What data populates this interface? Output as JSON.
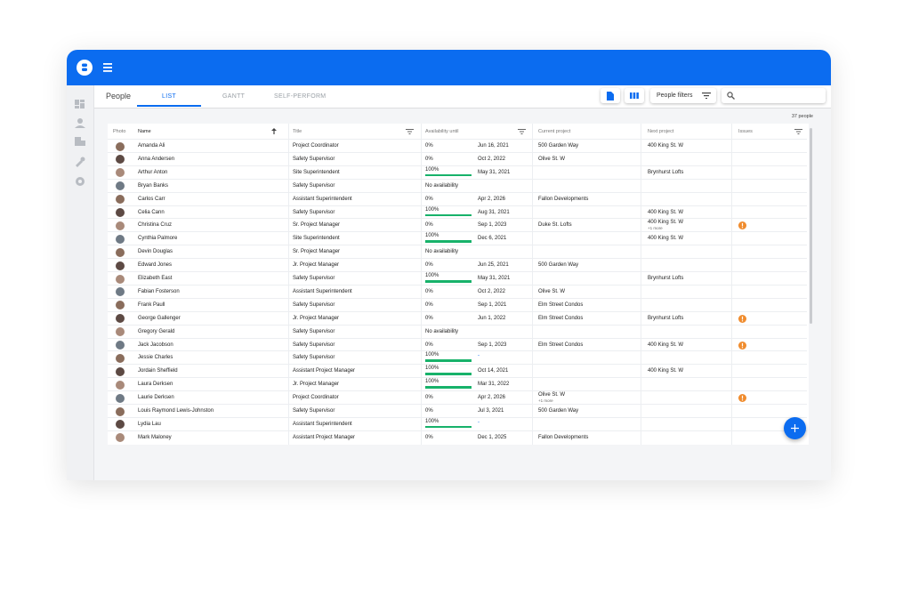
{
  "header": {
    "section": "People",
    "tabs": [
      "LIST",
      "GANTT",
      "SELF-PERFORM"
    ],
    "filter_button": "People filters"
  },
  "table": {
    "count": "37 people",
    "columns": [
      "Photo",
      "Name",
      "Title",
      "Availability until",
      "Current project",
      "Next project",
      "Issues"
    ],
    "rows": [
      {
        "name": "Amanda Ali",
        "title": "Project Coordinator",
        "availability": {
          "value": 0,
          "label": "0%"
        },
        "until": "Jun 16, 2021",
        "current": "500 Garden Way",
        "next": "400 King St. W"
      },
      {
        "name": "Anna Andersen",
        "title": "Safety Supervisor",
        "availability": {
          "value": 0,
          "label": "0%"
        },
        "until": "Oct 2, 2022",
        "current": "Olive St. W"
      },
      {
        "name": "Arthur Anton",
        "title": "Site Superintendent",
        "availability": {
          "value": 100,
          "label": "100%"
        },
        "until": "May 31, 2021",
        "next": "Brynhurst Lofts"
      },
      {
        "name": "Bryan Banks",
        "title": "Safety Supervisor",
        "availability": {
          "label": "No availability"
        }
      },
      {
        "name": "Carlos Carr",
        "title": "Assistant Superintendent",
        "availability": {
          "value": 0,
          "label": "0%"
        },
        "until": "Apr 2, 2026",
        "current": "Fallon Developments"
      },
      {
        "name": "Celia Cann",
        "title": "Safety Supervisor",
        "availability": {
          "value": 100,
          "label": "100%"
        },
        "until": "Aug 31, 2021",
        "next": "400 King St. W"
      },
      {
        "name": "Christina Cruz",
        "title": "Sr. Project Manager",
        "availability": {
          "value": 0,
          "label": "0%"
        },
        "until": "Sep 1, 2023",
        "current": "Duke St. Lofts",
        "next": "400 King St. W",
        "next_more": "+1 more",
        "issue": true
      },
      {
        "name": "Cynthia Palmore",
        "title": "Site Superintendent",
        "availability": {
          "value": 100,
          "label": "100%"
        },
        "until": "Dec 6, 2021",
        "next": "400 King St. W"
      },
      {
        "name": "Devin Douglas",
        "title": "Sr. Project Manager",
        "availability": {
          "label": "No availability"
        }
      },
      {
        "name": "Edward Jones",
        "title": "Jr. Project Manager",
        "availability": {
          "value": 0,
          "label": "0%"
        },
        "until": "Jun 25, 2021",
        "current": "500 Garden Way"
      },
      {
        "name": "Elizabeth East",
        "title": "Safety Supervisor",
        "availability": {
          "value": 100,
          "label": "100%"
        },
        "until": "May 31, 2021",
        "next": "Brynhurst Lofts"
      },
      {
        "name": "Fabian Fosterson",
        "title": "Assistant Superintendent",
        "availability": {
          "value": 0,
          "label": "0%"
        },
        "until": "Oct 2, 2022",
        "current": "Olive St. W"
      },
      {
        "name": "Frank Paull",
        "title": "Safety Supervisor",
        "availability": {
          "value": 0,
          "label": "0%"
        },
        "until": "Sep 1, 2021",
        "current": "Elm Street Condos"
      },
      {
        "name": "George Gallenger",
        "title": "Jr. Project Manager",
        "availability": {
          "value": 0,
          "label": "0%"
        },
        "until": "Jun 1, 2022",
        "current": "Elm Street Condos",
        "next": "Brynhurst Lofts",
        "issue": true
      },
      {
        "name": "Gregory Gerald",
        "title": "Safety Supervisor",
        "availability": {
          "label": "No availability"
        }
      },
      {
        "name": "Jack Jacobson",
        "title": "Safety Supervisor",
        "availability": {
          "value": 0,
          "label": "0%"
        },
        "until": "Sep 1, 2023",
        "current": "Elm Street Condos",
        "next": "400 King St. W",
        "issue": true
      },
      {
        "name": "Jessie Charles",
        "title": "Safety Supervisor",
        "availability": {
          "value": 100,
          "label": "100%"
        },
        "until": "-"
      },
      {
        "name": "Jordain Sheffield",
        "title": "Assistant Project Manager",
        "availability": {
          "value": 100,
          "label": "100%"
        },
        "until": "Oct 14, 2021",
        "next": "400 King St. W"
      },
      {
        "name": "Laura Derksen",
        "title": "Jr. Project Manager",
        "availability": {
          "value": 100,
          "label": "100%"
        },
        "until": "Mar 31, 2022"
      },
      {
        "name": "Laurie Derksen",
        "title": "Project Coordinator",
        "availability": {
          "value": 0,
          "label": "0%"
        },
        "until": "Apr 2, 2026",
        "current": "Olive St. W",
        "current_more": "+1 more",
        "issue": true
      },
      {
        "name": "Louis Raymond Lewis-Johnston",
        "title": "Safety Supervisor",
        "availability": {
          "value": 0,
          "label": "0%"
        },
        "until": "Jul 3, 2021",
        "current": "500 Garden Way"
      },
      {
        "name": "Lydia Lau",
        "title": "Assistant Superintendent",
        "availability": {
          "value": 100,
          "label": "100%"
        },
        "until": "-"
      },
      {
        "name": "Mark Maloney",
        "title": "Assistant Project Manager",
        "availability": {
          "value": 0,
          "label": "0%"
        },
        "until": "Dec 1, 2025",
        "current": "Fallon Developments"
      }
    ]
  }
}
